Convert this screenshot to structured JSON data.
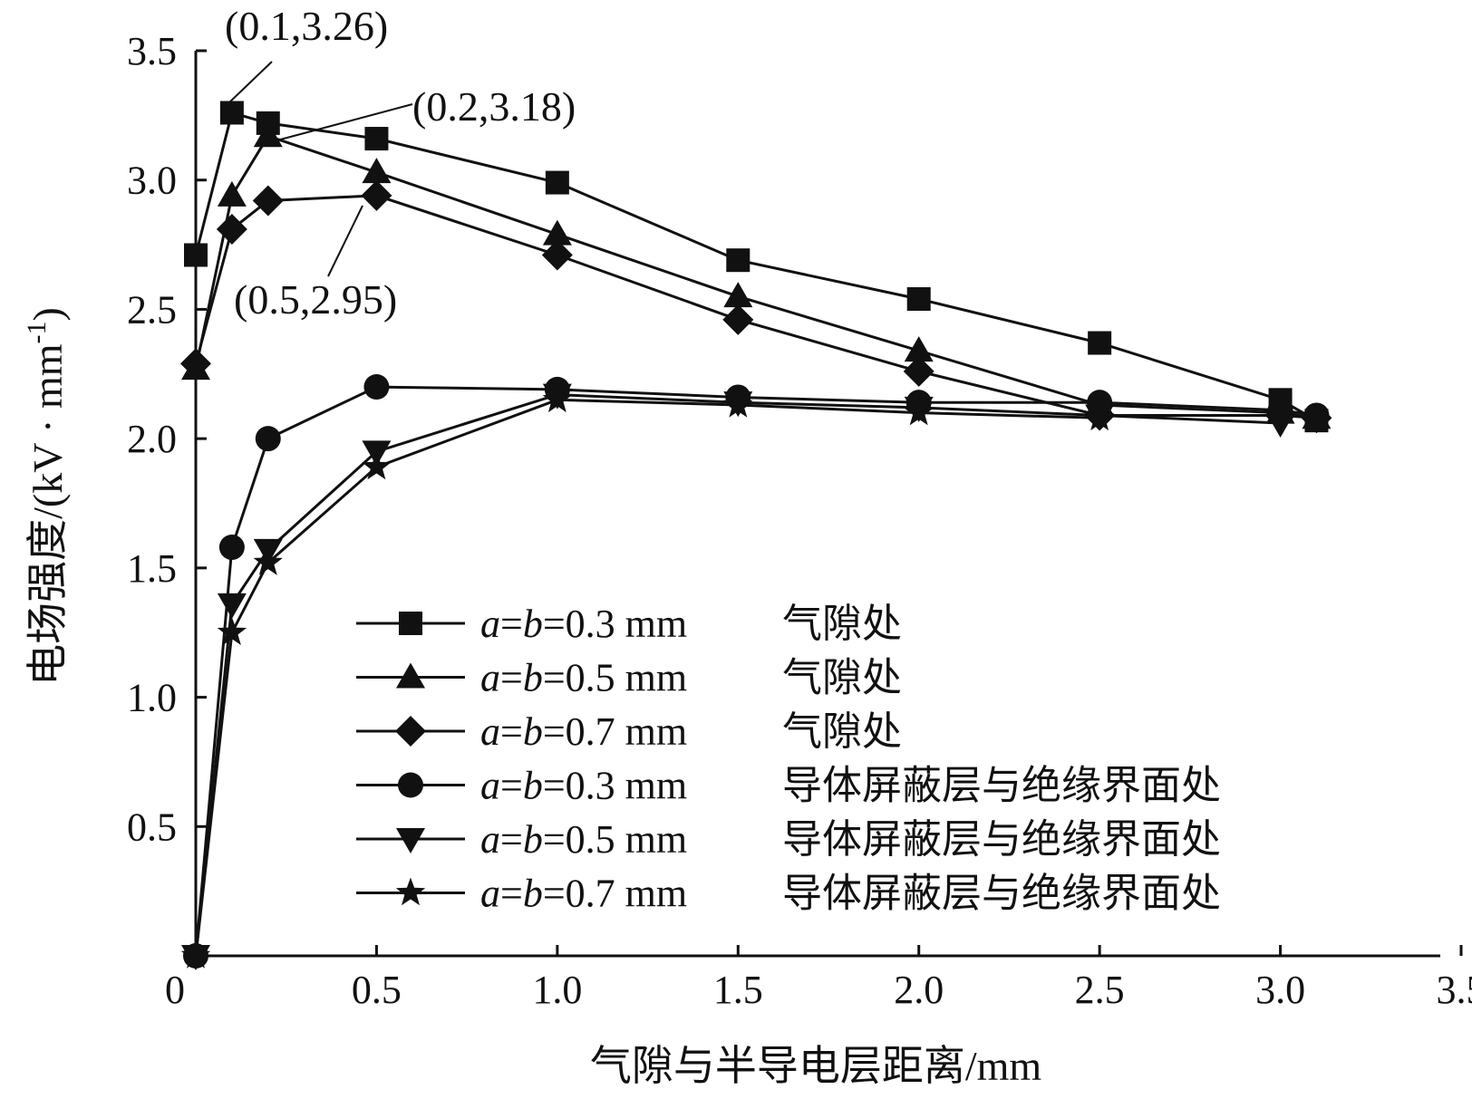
{
  "chart_data": {
    "type": "line",
    "xlabel": "气隙与半导电层距离/mm",
    "ylabel": "电场强度/(kV · mm",
    "ylabel_sup": "-1",
    "ylabel_close": ")",
    "xlim": [
      0,
      3.5
    ],
    "ylim": [
      0,
      3.5
    ],
    "x_ticks": [
      "0",
      "0.5",
      "1.0",
      "1.5",
      "2.0",
      "2.5",
      "3.0",
      "3.5"
    ],
    "y_ticks": [
      "0.5",
      "1.0",
      "1.5",
      "2.0",
      "2.5",
      "3.0",
      "3.5"
    ],
    "grid": false,
    "legend_position": "center-right",
    "annotations": [
      {
        "text": "(0.1,3.26)",
        "x": 0.1,
        "y": 3.26
      },
      {
        "text": "(0.2,3.18)",
        "x": 0.2,
        "y": 3.18
      },
      {
        "text": "(0.5,2.95)",
        "x": 0.5,
        "y": 2.95
      }
    ],
    "series": [
      {
        "name_italic": "a",
        "name_eq": "=",
        "name_italic2": "b",
        "name_rest": "=0.3 mm",
        "location": "气隙处",
        "marker": "square",
        "x": [
          0.0,
          0.1,
          0.2,
          0.5,
          1.0,
          1.5,
          2.0,
          2.5,
          3.0,
          3.1
        ],
        "y": [
          2.71,
          3.26,
          3.22,
          3.16,
          2.99,
          2.69,
          2.54,
          2.37,
          2.15,
          2.07
        ]
      },
      {
        "name_italic": "a",
        "name_eq": "=",
        "name_italic2": "b",
        "name_rest": "=0.5 mm",
        "location": "气隙处",
        "marker": "triangle-up",
        "x": [
          0.0,
          0.1,
          0.2,
          0.5,
          1.0,
          1.5,
          2.0,
          2.5,
          3.0,
          3.1
        ],
        "y": [
          2.27,
          2.94,
          3.17,
          3.03,
          2.79,
          2.55,
          2.34,
          2.13,
          2.1,
          2.08
        ]
      },
      {
        "name_italic": "a",
        "name_eq": "=",
        "name_italic2": "b",
        "name_rest": "=0.7 mm",
        "location": "气隙处",
        "marker": "diamond",
        "x": [
          0.0,
          0.1,
          0.2,
          0.5,
          1.0,
          1.5,
          2.0,
          2.5,
          3.0,
          3.1
        ],
        "y": [
          2.29,
          2.81,
          2.92,
          2.94,
          2.71,
          2.46,
          2.26,
          2.09,
          2.09,
          2.08
        ]
      },
      {
        "name_italic": "a",
        "name_eq": "=",
        "name_italic2": "b",
        "name_rest": "=0.3 mm",
        "location": "导体屏蔽层与绝缘界面处",
        "marker": "circle",
        "x": [
          0.0,
          0.1,
          0.2,
          0.5,
          1.0,
          1.5,
          2.0,
          2.5,
          3.0,
          3.1
        ],
        "y": [
          0.0,
          1.58,
          2.0,
          2.2,
          2.19,
          2.16,
          2.14,
          2.14,
          2.11,
          2.09
        ]
      },
      {
        "name_italic": "a",
        "name_eq": "=",
        "name_italic2": "b",
        "name_rest": "=0.5 mm",
        "location": "导体屏蔽层与绝缘界面处",
        "marker": "triangle-down",
        "x": [
          0.0,
          0.1,
          0.2,
          0.5,
          1.0,
          1.5,
          2.0,
          2.5,
          3.0
        ],
        "y": [
          0.0,
          1.36,
          1.57,
          1.95,
          2.17,
          2.14,
          2.12,
          2.09,
          2.06
        ]
      },
      {
        "name_italic": "a",
        "name_eq": "=",
        "name_italic2": "b",
        "name_rest": "=0.7 mm",
        "location": "导体屏蔽层与绝缘界面处",
        "marker": "star",
        "x": [
          0.0,
          0.1,
          0.2,
          0.5,
          1.0,
          1.5,
          2.0,
          2.5
        ],
        "y": [
          0.0,
          1.25,
          1.52,
          1.89,
          2.15,
          2.13,
          2.1,
          2.08
        ]
      }
    ]
  }
}
